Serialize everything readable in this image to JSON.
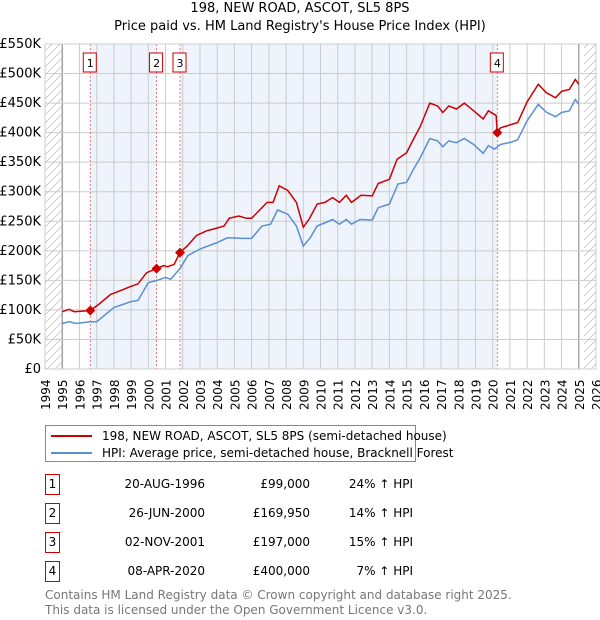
{
  "title": "198, NEW ROAD, ASCOT, SL5 8PS",
  "subtitle": "Price paid vs. HM Land Registry's House Price Index (HPI)",
  "colors": {
    "property": "#cc0000",
    "hpi": "#5b8fd4",
    "shade": "#eef3fc"
  },
  "chart_data": {
    "type": "line",
    "title": "198, NEW ROAD, ASCOT, SL5 8PS",
    "xlim": [
      1994,
      2026
    ],
    "ylim": [
      0,
      550000
    ],
    "grid": true,
    "x_ticks": [
      "1994",
      "1995",
      "1996",
      "1997",
      "1998",
      "1999",
      "2000",
      "2001",
      "2002",
      "2003",
      "2004",
      "2005",
      "2006",
      "2007",
      "2008",
      "2009",
      "2010",
      "2011",
      "2012",
      "2013",
      "2014",
      "2015",
      "2016",
      "2017",
      "2018",
      "2019",
      "2020",
      "2021",
      "2022",
      "2023",
      "2024",
      "2025",
      "2026"
    ],
    "y_ticks": [
      {
        "v": 0,
        "label": "£0"
      },
      {
        "v": 50000,
        "label": "£50K"
      },
      {
        "v": 100000,
        "label": "£100K"
      },
      {
        "v": 150000,
        "label": "£150K"
      },
      {
        "v": 200000,
        "label": "£200K"
      },
      {
        "v": 250000,
        "label": "£250K"
      },
      {
        "v": 300000,
        "label": "£300K"
      },
      {
        "v": 350000,
        "label": "£350K"
      },
      {
        "v": 400000,
        "label": "£400K"
      },
      {
        "v": 450000,
        "label": "£450K"
      },
      {
        "v": 500000,
        "label": "£500K"
      },
      {
        "v": 550000,
        "label": "£550K"
      }
    ],
    "legend_position": "below",
    "series": [
      {
        "name": "198, NEW ROAD, ASCOT, SL5 8PS (semi-detached house)",
        "color": "#cc0000",
        "points": [
          [
            1995.0,
            97000
          ],
          [
            1995.4,
            101000
          ],
          [
            1995.7,
            97000
          ],
          [
            1996.63,
            99000
          ],
          [
            1997.15,
            110000
          ],
          [
            1997.8,
            126000
          ],
          [
            1998.5,
            134000
          ],
          [
            1999.0,
            140000
          ],
          [
            1999.4,
            144000
          ],
          [
            1999.9,
            163000
          ],
          [
            2000.48,
            169950
          ],
          [
            2000.9,
            175000
          ],
          [
            2001.1,
            173000
          ],
          [
            2001.5,
            177000
          ],
          [
            2001.84,
            197000
          ],
          [
            2002.25,
            208000
          ],
          [
            2002.8,
            226000
          ],
          [
            2003.4,
            234000
          ],
          [
            2003.8,
            237000
          ],
          [
            2004.4,
            242000
          ],
          [
            2004.7,
            255000
          ],
          [
            2005.25,
            259000
          ],
          [
            2005.7,
            255000
          ],
          [
            2006.0,
            255000
          ],
          [
            2006.5,
            270000
          ],
          [
            2006.9,
            282000
          ],
          [
            2007.25,
            282000
          ],
          [
            2007.6,
            310000
          ],
          [
            2008.1,
            302000
          ],
          [
            2008.6,
            282000
          ],
          [
            2009.0,
            240000
          ],
          [
            2009.35,
            254000
          ],
          [
            2009.8,
            279000
          ],
          [
            2010.25,
            282000
          ],
          [
            2010.7,
            290000
          ],
          [
            2011.1,
            282000
          ],
          [
            2011.5,
            294000
          ],
          [
            2011.8,
            282000
          ],
          [
            2012.35,
            294000
          ],
          [
            2013.0,
            293000
          ],
          [
            2013.35,
            314000
          ],
          [
            2014.0,
            321000
          ],
          [
            2014.45,
            355000
          ],
          [
            2015.0,
            366000
          ],
          [
            2015.35,
            386000
          ],
          [
            2015.8,
            411000
          ],
          [
            2016.35,
            450000
          ],
          [
            2016.8,
            445000
          ],
          [
            2017.1,
            434000
          ],
          [
            2017.45,
            445000
          ],
          [
            2017.9,
            440000
          ],
          [
            2018.35,
            450000
          ],
          [
            2018.9,
            437000
          ],
          [
            2019.45,
            423000
          ],
          [
            2019.75,
            437000
          ],
          [
            2020.2,
            429000
          ],
          [
            2020.27,
            400000
          ],
          [
            2020.45,
            408000
          ],
          [
            2021.1,
            414000
          ],
          [
            2021.45,
            417000
          ],
          [
            2022.0,
            452000
          ],
          [
            2022.65,
            482000
          ],
          [
            2023.1,
            468000
          ],
          [
            2023.65,
            459000
          ],
          [
            2024.0,
            470000
          ],
          [
            2024.45,
            473000
          ],
          [
            2024.8,
            490000
          ],
          [
            2025.0,
            482000
          ]
        ]
      },
      {
        "name": "HPI: Average price, semi-detached house, Bracknell Forest",
        "color": "#5b8fd4",
        "points": [
          [
            1995.0,
            77000
          ],
          [
            1995.4,
            80000
          ],
          [
            1995.8,
            77000
          ],
          [
            1996.63,
            80000
          ],
          [
            1997.0,
            80000
          ],
          [
            1998.0,
            104000
          ],
          [
            1999.0,
            114000
          ],
          [
            1999.4,
            116000
          ],
          [
            2000.0,
            146000
          ],
          [
            2000.5,
            150000
          ],
          [
            2001.0,
            155000
          ],
          [
            2001.3,
            152000
          ],
          [
            2001.84,
            170000
          ],
          [
            2002.3,
            192000
          ],
          [
            2003.0,
            203000
          ],
          [
            2004.0,
            214000
          ],
          [
            2004.6,
            222000
          ],
          [
            2005.5,
            221000
          ],
          [
            2006.0,
            221000
          ],
          [
            2006.6,
            242000
          ],
          [
            2007.1,
            245000
          ],
          [
            2007.5,
            269000
          ],
          [
            2008.1,
            262000
          ],
          [
            2008.6,
            242000
          ],
          [
            2009.0,
            208000
          ],
          [
            2009.4,
            222000
          ],
          [
            2009.8,
            242000
          ],
          [
            2010.3,
            248000
          ],
          [
            2010.7,
            253000
          ],
          [
            2011.1,
            245000
          ],
          [
            2011.5,
            253000
          ],
          [
            2011.8,
            245000
          ],
          [
            2012.3,
            253000
          ],
          [
            2013.0,
            252000
          ],
          [
            2013.35,
            273000
          ],
          [
            2014.0,
            279000
          ],
          [
            2014.5,
            313000
          ],
          [
            2015.0,
            316000
          ],
          [
            2015.4,
            338000
          ],
          [
            2015.8,
            358000
          ],
          [
            2016.35,
            390000
          ],
          [
            2016.8,
            386000
          ],
          [
            2017.1,
            376000
          ],
          [
            2017.45,
            386000
          ],
          [
            2017.9,
            383000
          ],
          [
            2018.35,
            390000
          ],
          [
            2018.9,
            380000
          ],
          [
            2019.45,
            365000
          ],
          [
            2019.75,
            378000
          ],
          [
            2020.1,
            372000
          ],
          [
            2020.45,
            380000
          ],
          [
            2021.1,
            384000
          ],
          [
            2021.45,
            388000
          ],
          [
            2022.0,
            420000
          ],
          [
            2022.65,
            448000
          ],
          [
            2023.1,
            435000
          ],
          [
            2023.65,
            427000
          ],
          [
            2024.0,
            434000
          ],
          [
            2024.45,
            437000
          ],
          [
            2024.8,
            456000
          ],
          [
            2025.0,
            448000
          ]
        ]
      }
    ],
    "sales": [
      {
        "label": "1",
        "x": 1996.63,
        "y": 99000
      },
      {
        "label": "2",
        "x": 2000.48,
        "y": 169950
      },
      {
        "label": "3",
        "x": 2001.84,
        "y": 197000
      },
      {
        "label": "4",
        "x": 2020.27,
        "y": 400000
      }
    ],
    "data_end": 2025.3
  },
  "legend": [
    {
      "label": "198, NEW ROAD, ASCOT, SL5 8PS (semi-detached house)"
    },
    {
      "label": "HPI: Average price, semi-detached house, Bracknell Forest"
    }
  ],
  "table": [
    {
      "num": "1",
      "date": "20-AUG-1996",
      "price": "£99,000",
      "pct": "24% ↑ HPI"
    },
    {
      "num": "2",
      "date": "26-JUN-2000",
      "price": "£169,950",
      "pct": "14% ↑ HPI"
    },
    {
      "num": "3",
      "date": "02-NOV-2001",
      "price": "£197,000",
      "pct": "15% ↑ HPI"
    },
    {
      "num": "4",
      "date": "08-APR-2020",
      "price": "£400,000",
      "pct": "7% ↑ HPI"
    }
  ],
  "footer": {
    "line1": "Contains HM Land Registry data © Crown copyright and database right 2025.",
    "line2": "This data is licensed under the Open Government Licence v3.0."
  }
}
